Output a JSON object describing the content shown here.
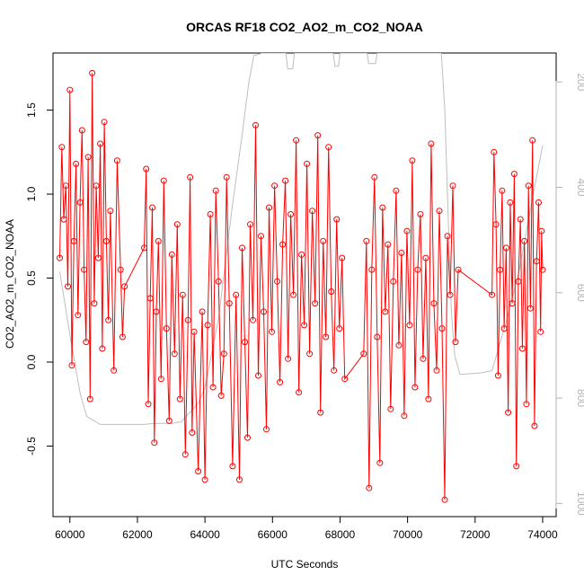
{
  "chart_data": {
    "type": "line",
    "title": "ORCAS RF18 CO2_AO2_m_CO2_NOAA",
    "xlabel": "UTC Seconds",
    "ylabel": "CO2_AO2_m_CO2_NOAA",
    "xlim": [
      59500,
      74400
    ],
    "ylim": [
      -0.92,
      1.84
    ],
    "x_ticks": [
      "60000",
      "62000",
      "64000",
      "66000",
      "68000",
      "70000",
      "72000",
      "74000"
    ],
    "y_ticks": [
      "-0.5",
      "0.0",
      "0.5",
      "1.0",
      "1.5"
    ],
    "y2_ticks": [
      "200",
      "400",
      "600",
      "800",
      "1000"
    ],
    "y2lim": [
      1025,
      145
    ],
    "grid": false,
    "colors": {
      "series": "#ff0000",
      "secondary": "#bebebe",
      "axis": "#000000",
      "right_axis": "#b3b3b3"
    },
    "series": [
      {
        "marker": "open-circle",
        "points": [
          [
            59700,
            0.62
          ],
          [
            59760,
            1.28
          ],
          [
            59820,
            0.85
          ],
          [
            59880,
            1.05
          ],
          [
            59940,
            0.45
          ],
          [
            60000,
            1.62
          ],
          [
            60060,
            -0.02
          ],
          [
            60120,
            0.72
          ],
          [
            60180,
            1.18
          ],
          [
            60240,
            0.28
          ],
          [
            60300,
            0.95
          ],
          [
            60360,
            1.38
          ],
          [
            60420,
            0.55
          ],
          [
            60480,
            0.12
          ],
          [
            60540,
            1.22
          ],
          [
            60600,
            -0.22
          ],
          [
            60660,
            1.72
          ],
          [
            60720,
            0.35
          ],
          [
            60780,
            1.05
          ],
          [
            60840,
            0.62
          ],
          [
            60900,
            1.3
          ],
          [
            60960,
            0.08
          ],
          [
            61020,
            1.43
          ],
          [
            61080,
            0.72
          ],
          [
            61140,
            0.25
          ],
          [
            61200,
            0.9
          ],
          [
            61300,
            -0.05
          ],
          [
            61400,
            1.2
          ],
          [
            61500,
            0.55
          ],
          [
            61560,
            0.15
          ],
          [
            61620,
            0.45
          ],
          [
            62200,
            0.68
          ],
          [
            62260,
            1.15
          ],
          [
            62320,
            -0.25
          ],
          [
            62380,
            0.38
          ],
          [
            62440,
            0.92
          ],
          [
            62500,
            -0.48
          ],
          [
            62560,
            0.3
          ],
          [
            62620,
            0.72
          ],
          [
            62700,
            -0.1
          ],
          [
            62780,
            1.08
          ],
          [
            62860,
            0.2
          ],
          [
            62940,
            -0.35
          ],
          [
            63020,
            0.64
          ],
          [
            63100,
            0.05
          ],
          [
            63180,
            0.82
          ],
          [
            63260,
            -0.22
          ],
          [
            63340,
            0.4
          ],
          [
            63420,
            -0.55
          ],
          [
            63500,
            0.25
          ],
          [
            63560,
            1.1
          ],
          [
            63620,
            -0.42
          ],
          [
            63680,
            0.18
          ],
          [
            63800,
            -0.65
          ],
          [
            63920,
            0.3
          ],
          [
            64000,
            -0.7
          ],
          [
            64080,
            0.22
          ],
          [
            64160,
            0.88
          ],
          [
            64240,
            -0.15
          ],
          [
            64320,
            1.02
          ],
          [
            64400,
            0.48
          ],
          [
            64480,
            -0.2
          ],
          [
            64560,
            0.05
          ],
          [
            64640,
            1.1
          ],
          [
            64720,
            0.35
          ],
          [
            64820,
            -0.62
          ],
          [
            64920,
            0.4
          ],
          [
            65020,
            -0.7
          ],
          [
            65100,
            0.68
          ],
          [
            65180,
            0.12
          ],
          [
            65260,
            -0.45
          ],
          [
            65340,
            0.82
          ],
          [
            65420,
            0.25
          ],
          [
            65500,
            1.41
          ],
          [
            65580,
            -0.08
          ],
          [
            65660,
            0.75
          ],
          [
            65740,
            0.3
          ],
          [
            65820,
            -0.4
          ],
          [
            65900,
            0.92
          ],
          [
            65980,
            0.18
          ],
          [
            66060,
            1.05
          ],
          [
            66140,
            0.48
          ],
          [
            66220,
            -0.12
          ],
          [
            66300,
            0.7
          ],
          [
            66380,
            1.08
          ],
          [
            66460,
            0.02
          ],
          [
            66540,
            0.88
          ],
          [
            66620,
            0.4
          ],
          [
            66700,
            1.32
          ],
          [
            66780,
            -0.18
          ],
          [
            66860,
            0.64
          ],
          [
            66940,
            0.22
          ],
          [
            67020,
            1.18
          ],
          [
            67100,
            0.05
          ],
          [
            67180,
            0.9
          ],
          [
            67260,
            0.35
          ],
          [
            67340,
            1.35
          ],
          [
            67420,
            -0.3
          ],
          [
            67500,
            0.72
          ],
          [
            67580,
            0.15
          ],
          [
            67660,
            1.28
          ],
          [
            67740,
            0.42
          ],
          [
            67820,
            -0.05
          ],
          [
            67900,
            0.85
          ],
          [
            67980,
            0.2
          ],
          [
            68060,
            0.62
          ],
          [
            68140,
            -0.1
          ],
          [
            68700,
            0.05
          ],
          [
            68780,
            0.72
          ],
          [
            68860,
            -0.75
          ],
          [
            68940,
            0.55
          ],
          [
            69020,
            1.1
          ],
          [
            69100,
            0.15
          ],
          [
            69180,
            -0.6
          ],
          [
            69260,
            0.92
          ],
          [
            69340,
            0.3
          ],
          [
            69420,
            0.7
          ],
          [
            69500,
            -0.28
          ],
          [
            69580,
            0.48
          ],
          [
            69660,
            1.02
          ],
          [
            69740,
            0.1
          ],
          [
            69820,
            0.65
          ],
          [
            69900,
            -0.32
          ],
          [
            69980,
            0.78
          ],
          [
            70060,
            0.22
          ],
          [
            70140,
            1.2
          ],
          [
            70220,
            -0.15
          ],
          [
            70300,
            0.55
          ],
          [
            70380,
            0.88
          ],
          [
            70460,
            0.02
          ],
          [
            70540,
            0.62
          ],
          [
            70620,
            -0.22
          ],
          [
            70700,
            1.3
          ],
          [
            70780,
            0.35
          ],
          [
            70860,
            -0.05
          ],
          [
            70940,
            0.9
          ],
          [
            71020,
            0.2
          ],
          [
            71100,
            -0.82
          ],
          [
            71180,
            0.75
          ],
          [
            71260,
            0.4
          ],
          [
            71340,
            1.05
          ],
          [
            71420,
            0.12
          ],
          [
            71500,
            0.55
          ],
          [
            72500,
            0.4
          ],
          [
            72560,
            1.25
          ],
          [
            72620,
            0.82
          ],
          [
            72680,
            -0.08
          ],
          [
            72740,
            0.55
          ],
          [
            72800,
            1.02
          ],
          [
            72860,
            0.2
          ],
          [
            72920,
            0.68
          ],
          [
            72980,
            -0.3
          ],
          [
            73040,
            0.95
          ],
          [
            73100,
            0.35
          ],
          [
            73160,
            1.12
          ],
          [
            73220,
            -0.62
          ],
          [
            73280,
            0.48
          ],
          [
            73340,
            0.85
          ],
          [
            73400,
            0.08
          ],
          [
            73460,
            0.72
          ],
          [
            73520,
            -0.25
          ],
          [
            73580,
            1.05
          ],
          [
            73640,
            0.32
          ],
          [
            73700,
            1.32
          ],
          [
            73760,
            -0.38
          ],
          [
            73820,
            0.6
          ],
          [
            73880,
            0.95
          ],
          [
            73940,
            0.18
          ],
          [
            73970,
            0.78
          ],
          [
            74000,
            0.55
          ]
        ]
      },
      {
        "axis": "right",
        "marker": "none",
        "points": [
          [
            59700,
            560
          ],
          [
            60000,
            680
          ],
          [
            60300,
            790
          ],
          [
            60500,
            835
          ],
          [
            60900,
            850
          ],
          [
            61500,
            850
          ],
          [
            62200,
            850
          ],
          [
            62500,
            848
          ],
          [
            63000,
            848
          ],
          [
            63300,
            845
          ],
          [
            63800,
            810
          ],
          [
            64000,
            780
          ],
          [
            64400,
            650
          ],
          [
            64800,
            440
          ],
          [
            65100,
            300
          ],
          [
            65300,
            200
          ],
          [
            65450,
            150
          ],
          [
            65700,
            145
          ],
          [
            66400,
            145
          ],
          [
            66450,
            175
          ],
          [
            66600,
            175
          ],
          [
            66650,
            145
          ],
          [
            67800,
            145
          ],
          [
            67850,
            170
          ],
          [
            67950,
            170
          ],
          [
            68000,
            145
          ],
          [
            68800,
            145
          ],
          [
            68850,
            165
          ],
          [
            69050,
            165
          ],
          [
            69100,
            145
          ],
          [
            71000,
            145
          ],
          [
            71100,
            250
          ],
          [
            71200,
            450
          ],
          [
            71300,
            640
          ],
          [
            71400,
            720
          ],
          [
            71550,
            755
          ],
          [
            72200,
            752
          ],
          [
            72500,
            748
          ],
          [
            72900,
            660
          ],
          [
            73300,
            560
          ],
          [
            73700,
            420
          ],
          [
            74000,
            320
          ]
        ]
      }
    ]
  }
}
